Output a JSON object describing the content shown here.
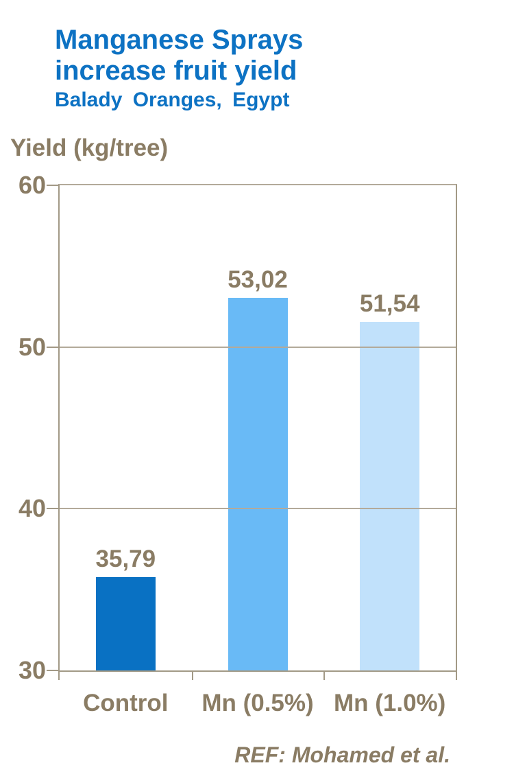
{
  "title": {
    "line1": "Manganese Sprays",
    "line2": "increase fruit yield",
    "subtitle": "Balady Oranges, Egypt"
  },
  "y_axis_title": "Yield (kg/tree)",
  "reference": "REF: Mohamed et al.",
  "colors": {
    "title_blue": "#0d72c3",
    "axis_text_brown": "#8a7c64",
    "axis_line": "#a29986",
    "gridline": "#b3aa9a",
    "bar_control": "#0971c3",
    "bar_mn_05": "#69baf6",
    "bar_mn_10": "#c1e1fb"
  },
  "chart_data": {
    "type": "bar",
    "title": "Manganese Sprays increase fruit yield",
    "subtitle": "Balady Oranges, Egypt",
    "xlabel": "",
    "ylabel": "Yield (kg/tree)",
    "categories": [
      "Control",
      "Mn (0.5%)",
      "Mn (1.0%)"
    ],
    "values": [
      35.79,
      53.02,
      51.54
    ],
    "value_labels": [
      "35,79",
      "53,02",
      "51,54"
    ],
    "bar_colors": [
      "#0971c3",
      "#69baf6",
      "#c1e1fb"
    ],
    "ylim": [
      30,
      60
    ],
    "yticks": [
      60,
      50,
      40,
      30
    ],
    "ytick_labels": [
      "60",
      "50",
      "40",
      "30"
    ],
    "grid": true,
    "legend_position": "none",
    "decimal_separator": "comma"
  }
}
